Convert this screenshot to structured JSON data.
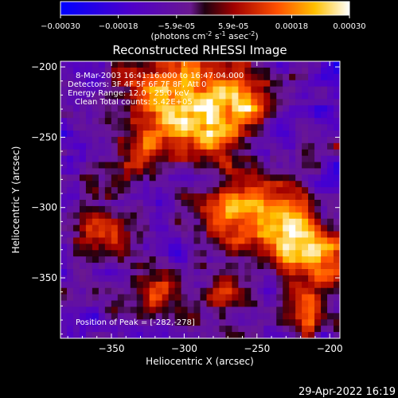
{
  "chart_data": {
    "type": "heatmap",
    "title": "Reconstructed RHESSI Image",
    "xlabel": "Heliocentric X (arcsec)",
    "ylabel": "Heliocentric Y (arcsec)",
    "xlim": [
      -385,
      -193
    ],
    "ylim": [
      -393,
      -196
    ],
    "x_ticks": [
      -350,
      -300,
      -250,
      -200
    ],
    "y_ticks": [
      -200,
      -250,
      -300,
      -350
    ],
    "colorbar": {
      "min": -0.0003,
      "max": 0.0003,
      "ticks": [
        "-0.00030",
        "-0.00018",
        "-5.9e-05",
        "5.9e-05",
        "0.00018",
        "0.00030"
      ],
      "tick_values": [
        -0.0003,
        -0.00018,
        -5.9e-05,
        5.9e-05,
        0.00018,
        0.0003
      ],
      "unit_main": "(photons cm",
      "unit_exp1": "-2",
      "unit_mid": " s",
      "unit_exp2": "-1",
      "unit_mid2": " asec",
      "unit_exp3": "-2",
      "unit_end": ")"
    },
    "annotations": [
      "8-Mar-2003 16:41:16.000 to 16:47:04.000",
      "Detectors: 3F 4F 5F 6F 7F 8F, Att 0",
      "Energy Range: 12.0 - 25.0 keV",
      "Clean    Total counts: 5.42E+05"
    ],
    "peak_label": "Position of Peak = [-282,-278]",
    "peak_position": [
      -282,
      -278
    ],
    "grid": false
  },
  "footer_timestamp": "29-Apr-2022 16:19"
}
